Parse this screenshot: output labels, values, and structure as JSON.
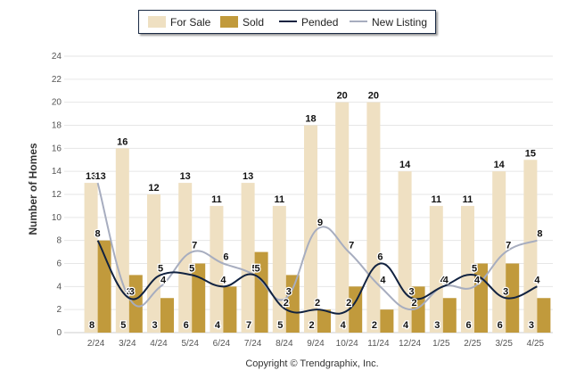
{
  "legend": {
    "for_sale": "For Sale",
    "sold": "Sold",
    "pended": "Pended",
    "new_listing": "New Listing"
  },
  "colors": {
    "for_sale": "#efe0c2",
    "sold": "#c19a3c",
    "pended": "#112240",
    "new_listing": "#a7adbf",
    "grid": "#e6e6e6",
    "axis_text": "#555555"
  },
  "copyright": "Copyright © Trendgraphix, Inc.",
  "chart_data": {
    "type": "bar",
    "ylabel": "Number of Homes",
    "xlabel": "",
    "ylim": [
      0,
      24
    ],
    "yticks": [
      0,
      2,
      4,
      6,
      8,
      10,
      12,
      14,
      16,
      18,
      20,
      22,
      24
    ],
    "grid": true,
    "legend_position": "top",
    "categories": [
      "2/24",
      "3/24",
      "4/24",
      "5/24",
      "6/24",
      "7/24",
      "8/24",
      "9/24",
      "10/24",
      "11/24",
      "12/24",
      "1/25",
      "2/25",
      "3/25",
      "4/25"
    ],
    "series": [
      {
        "name": "For Sale",
        "type": "bar",
        "values": [
          13,
          16,
          12,
          13,
          11,
          13,
          11,
          18,
          20,
          20,
          14,
          11,
          11,
          14,
          15
        ]
      },
      {
        "name": "Sold",
        "type": "bar",
        "values": [
          8,
          5,
          3,
          6,
          4,
          7,
          5,
          2,
          4,
          2,
          4,
          3,
          6,
          6,
          3
        ]
      },
      {
        "name": "Pended",
        "type": "line",
        "values": [
          8,
          3,
          5,
          5,
          4,
          5,
          2,
          2,
          2,
          6,
          3,
          4,
          5,
          3,
          4
        ]
      },
      {
        "name": "New Listing",
        "type": "line",
        "values": [
          13,
          3,
          4,
          7,
          6,
          5,
          3,
          9,
          7,
          4,
          2,
          4,
          4,
          7,
          8
        ]
      }
    ]
  }
}
